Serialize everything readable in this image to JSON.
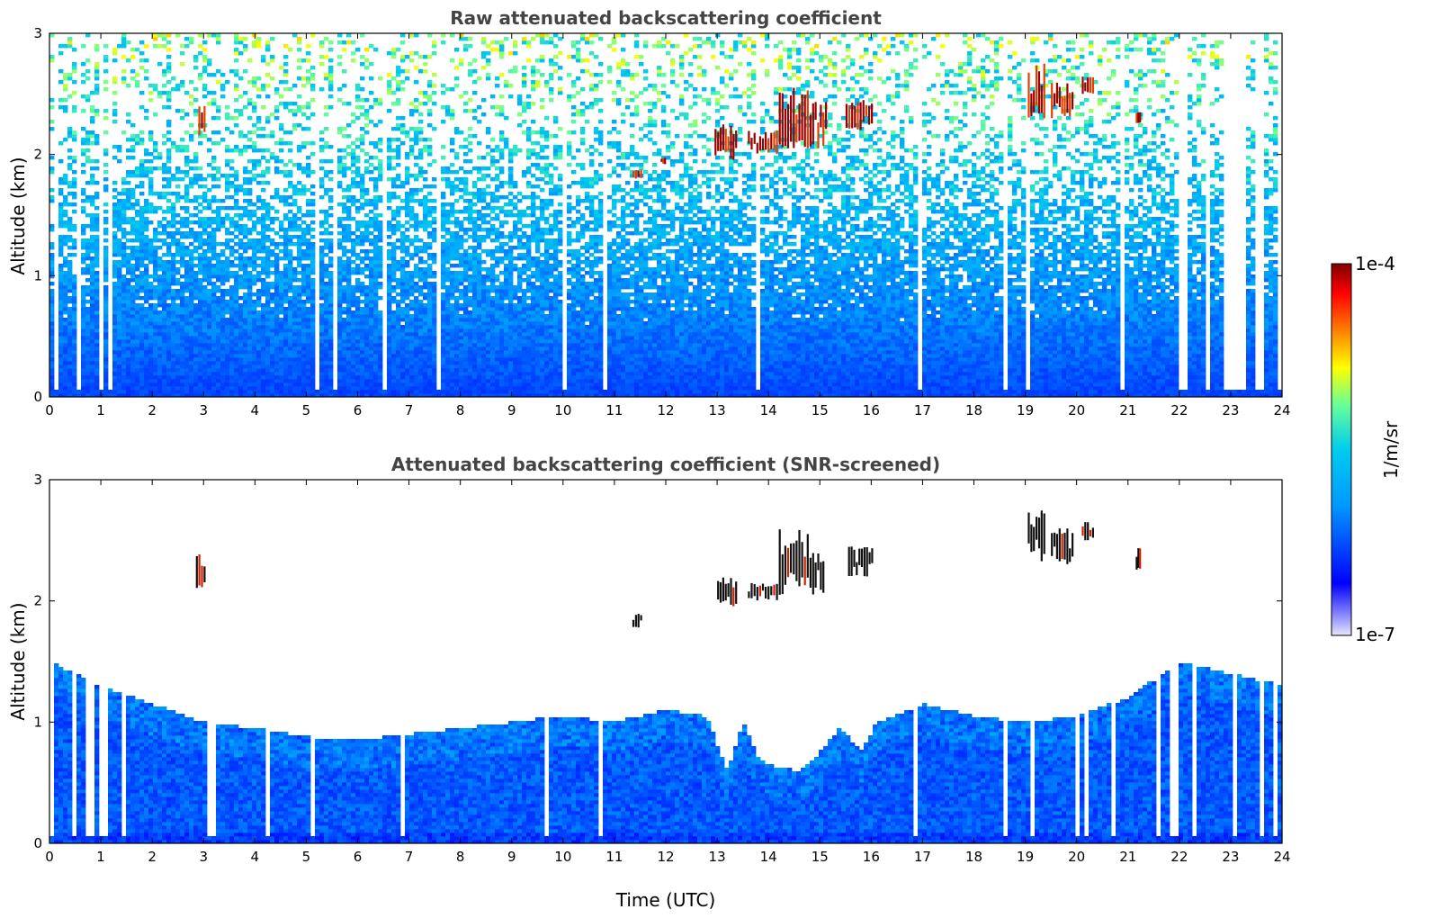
{
  "chart_data": [
    {
      "type": "heatmap",
      "title": "Raw attenuated backscattering coefficient",
      "xlabel": "",
      "ylabel": "Altitude (km)",
      "xlim": [
        0,
        24
      ],
      "ylim": [
        0,
        3
      ],
      "x_ticks": [
        0,
        1,
        2,
        3,
        4,
        5,
        6,
        7,
        8,
        9,
        10,
        11,
        12,
        13,
        14,
        15,
        16,
        17,
        18,
        19,
        20,
        21,
        22,
        23,
        24
      ],
      "y_ticks": [
        0,
        1,
        2,
        3
      ],
      "noise_top_km": 3.0,
      "cloud_patches": [
        {
          "x0": 2.9,
          "x1": 3.05,
          "y0": 2.15,
          "y1": 2.4
        },
        {
          "x0": 11.35,
          "x1": 11.55,
          "y0": 1.8,
          "y1": 1.88
        },
        {
          "x0": 11.9,
          "x1": 12.0,
          "y0": 1.92,
          "y1": 1.98
        },
        {
          "x0": 12.95,
          "x1": 13.4,
          "y0": 1.95,
          "y1": 2.25
        },
        {
          "x0": 13.6,
          "x1": 14.2,
          "y0": 2.0,
          "y1": 2.2
        },
        {
          "x0": 14.2,
          "x1": 14.8,
          "y0": 2.05,
          "y1": 2.55
        },
        {
          "x0": 14.8,
          "x1": 15.15,
          "y0": 2.05,
          "y1": 2.45
        },
        {
          "x0": 15.5,
          "x1": 16.05,
          "y0": 2.2,
          "y1": 2.45
        },
        {
          "x0": 19.05,
          "x1": 19.4,
          "y0": 2.3,
          "y1": 2.75
        },
        {
          "x0": 19.5,
          "x1": 19.95,
          "y0": 2.3,
          "y1": 2.6
        },
        {
          "x0": 20.1,
          "x1": 20.35,
          "y0": 2.5,
          "y1": 2.65
        },
        {
          "x0": 21.15,
          "x1": 21.25,
          "y0": 2.25,
          "y1": 2.35
        }
      ]
    },
    {
      "type": "heatmap",
      "title": "Attenuated backscattering coefficient (SNR-screened)",
      "xlabel": "Time (UTC)",
      "ylabel": "Altitude (km)",
      "xlim": [
        0,
        24
      ],
      "ylim": [
        0,
        3
      ],
      "x_ticks": [
        0,
        1,
        2,
        3,
        4,
        5,
        6,
        7,
        8,
        9,
        10,
        11,
        12,
        13,
        14,
        15,
        16,
        17,
        18,
        19,
        20,
        21,
        22,
        23,
        24
      ],
      "y_ticks": [
        0,
        1,
        2,
        3
      ],
      "snr_boundary_km": [
        [
          0,
          1.5
        ],
        [
          1,
          1.3
        ],
        [
          2,
          1.15
        ],
        [
          3,
          1.0
        ],
        [
          4,
          0.95
        ],
        [
          5,
          0.88
        ],
        [
          6,
          0.85
        ],
        [
          7,
          0.9
        ],
        [
          8,
          0.95
        ],
        [
          9,
          1.0
        ],
        [
          10,
          1.05
        ],
        [
          11,
          1.0
        ],
        [
          12,
          1.1
        ],
        [
          12.8,
          1.05
        ],
        [
          13.2,
          0.6
        ],
        [
          13.5,
          1.0
        ],
        [
          13.8,
          0.7
        ],
        [
          14.2,
          0.62
        ],
        [
          14.6,
          0.6
        ],
        [
          15.0,
          0.75
        ],
        [
          15.4,
          0.95
        ],
        [
          15.8,
          0.75
        ],
        [
          16.1,
          1.0
        ],
        [
          17,
          1.15
        ],
        [
          18,
          1.05
        ],
        [
          19,
          1.0
        ],
        [
          20,
          1.05
        ],
        [
          21,
          1.2
        ],
        [
          22,
          1.5
        ],
        [
          23,
          1.4
        ],
        [
          24,
          1.3
        ]
      ],
      "cloud_patches": [
        {
          "x0": 2.85,
          "x1": 3.05,
          "y0": 2.1,
          "y1": 2.4
        },
        {
          "x0": 11.35,
          "x1": 11.55,
          "y0": 1.78,
          "y1": 1.9
        },
        {
          "x0": 13.0,
          "x1": 13.4,
          "y0": 1.95,
          "y1": 2.2
        },
        {
          "x0": 13.6,
          "x1": 14.2,
          "y0": 2.0,
          "y1": 2.15
        },
        {
          "x0": 14.2,
          "x1": 14.8,
          "y0": 2.05,
          "y1": 2.6
        },
        {
          "x0": 14.8,
          "x1": 15.1,
          "y0": 2.05,
          "y1": 2.4
        },
        {
          "x0": 15.55,
          "x1": 16.05,
          "y0": 2.2,
          "y1": 2.45
        },
        {
          "x0": 19.05,
          "x1": 19.4,
          "y0": 2.3,
          "y1": 2.75
        },
        {
          "x0": 19.5,
          "x1": 19.95,
          "y0": 2.3,
          "y1": 2.6
        },
        {
          "x0": 20.1,
          "x1": 20.35,
          "y0": 2.5,
          "y1": 2.65
        },
        {
          "x0": 21.15,
          "x1": 21.25,
          "y0": 2.25,
          "y1": 2.45
        }
      ]
    }
  ],
  "colorbar": {
    "label": "1/m/sr",
    "max_label": "1e-4",
    "min_label": "1e-7",
    "colors": [
      "#e6e6fa",
      "#0000ff",
      "#00bfff",
      "#66ff99",
      "#ffff00",
      "#ff8000",
      "#ff0000",
      "#800000"
    ]
  }
}
